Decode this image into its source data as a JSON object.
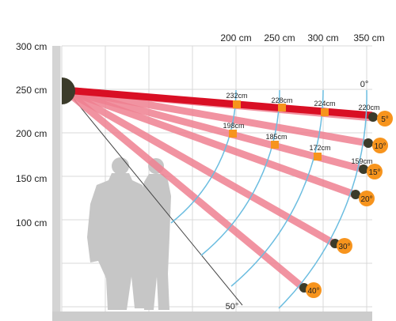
{
  "y_axis_labels": [
    "300 cm",
    "250 cm",
    "200 cm",
    "150 cm",
    "100 cm"
  ],
  "x_axis_labels": [
    "200 cm",
    "250 cm",
    "300 cm",
    "350 cm"
  ],
  "angle_labels": {
    "zero": "0°",
    "fifty": "50°",
    "badges": [
      "5°",
      "10°",
      "15°",
      "20°",
      "30°",
      "40°"
    ]
  },
  "distance_labels": [
    "232cm",
    "228cm",
    "224cm",
    "220cm",
    "198cm",
    "185cm",
    "172cm",
    "159cm"
  ],
  "colors": {
    "main_beam": "#d90f24",
    "beams": "#ee8090",
    "arcs": "#6bbde0",
    "markers": "#f7941d",
    "badge": "#f7941d",
    "grid": "#d8d8d8",
    "wall": "#d4d4d4",
    "floor": "#cccccc",
    "silhouette": "#c6c6c6",
    "sensor": "#3b3b2a"
  }
}
